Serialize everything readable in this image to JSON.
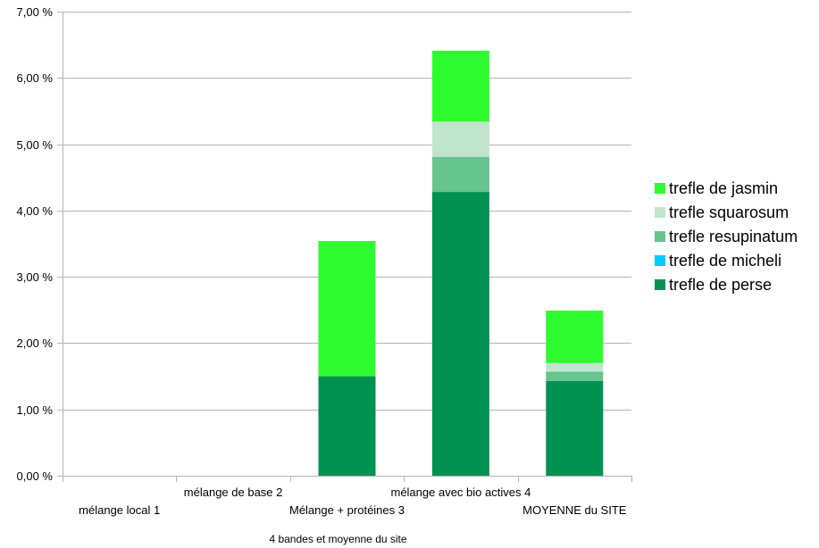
{
  "chart_data": {
    "type": "bar",
    "stacked": true,
    "categories": [
      "mélange local 1",
      "mélange de base 2",
      "Mélange + protéines 3",
      "mélange avec bio actives 4",
      "MOYENNE du SITE"
    ],
    "series": [
      {
        "name": "trefle de perse",
        "color": "#009250",
        "values": [
          0,
          0,
          1.5,
          4.28,
          1.43
        ]
      },
      {
        "name": "trefle de micheli",
        "color": "#00CCFF",
        "values": [
          0,
          0,
          0,
          0,
          0
        ]
      },
      {
        "name": "trefle resupinatum",
        "color": "#66C48E",
        "values": [
          0,
          0,
          0,
          0.53,
          0.14
        ]
      },
      {
        "name": "trefle squarosum",
        "color": "#C0E4CD",
        "values": [
          0,
          0,
          0,
          0.53,
          0.13
        ]
      },
      {
        "name": "trefle de jasmin",
        "color": "#2EFC2E",
        "values": [
          0,
          0,
          2.04,
          1.07,
          0.79
        ]
      }
    ],
    "y_ticks": [
      "0,00 %",
      "1,00 %",
      "2,00 %",
      "3,00 %",
      "4,00 %",
      "5,00 %",
      "6,00 %",
      "7,00 %"
    ],
    "ylim": [
      0,
      7
    ],
    "xlabel": "4 bandes et moyenne du site",
    "ylabel": "",
    "grid": true,
    "legend_position": "right"
  }
}
